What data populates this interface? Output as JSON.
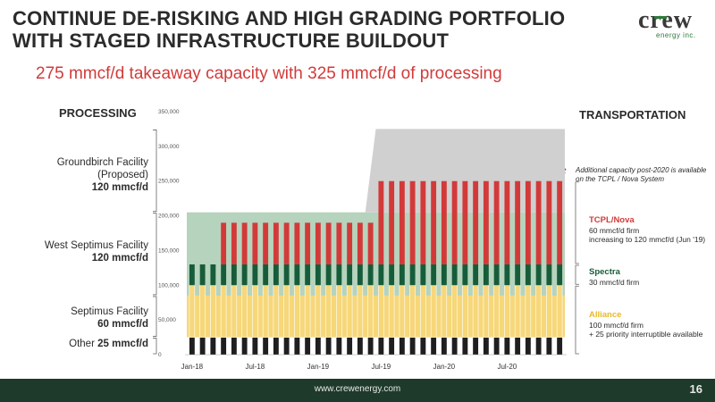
{
  "title": "CONTINUE DE-RISKING AND HIGH GRADING PORTFOLIO WITH STAGED INFRASTRUCTURE BUILDOUT",
  "subtitle": "275 mmcf/d takeaway capacity with 325 mmcf/d of processing",
  "logo": {
    "name": "crew",
    "sub": "energy inc."
  },
  "processing_header": "PROCESSING",
  "transportation_header": "TRANSPORTATION",
  "processing_labels": [
    {
      "name": "Groundbirch Facility",
      "sub": "(Proposed)",
      "value": "120 mmcf/d"
    },
    {
      "name": "West Septimus Facility",
      "value": "120 mmcf/d"
    },
    {
      "name": "Septimus Facility",
      "value": "60 mmcf/d"
    },
    {
      "name": "Other",
      "value": "25 mmcf/d"
    }
  ],
  "transport_note": "Additional capacity post-2020 is available on the TCPL / Nova System",
  "transport_labels": [
    {
      "name": "TCPL/Nova",
      "line1": "60 mmcf/d firm",
      "line2": "increasing to 120 mmcf/d (Jun '19)"
    },
    {
      "name": "Spectra",
      "line1": "30 mmcf/d firm"
    },
    {
      "name": "Alliance",
      "line1": "100 mmcf/d firm",
      "line2": "+ 25 priority interruptible available"
    }
  ],
  "footer": {
    "url": "www.crewenergy.com",
    "page": "16"
  },
  "colors": {
    "other": "#1f1f1f",
    "septimus": "#f6d77a",
    "west_septimus": "#b6d3bd",
    "groundbirch": "#d0d0d0",
    "tcpl": "#d23a3a",
    "spectra": "#175c3a",
    "alliance": "#f6d77a"
  },
  "chart_data": {
    "type": "area",
    "ylim": [
      0,
      350000
    ],
    "yticks": [
      "0",
      "50,000",
      "100,000",
      "150,000",
      "200,000",
      "250,000",
      "300,000",
      "350,000"
    ],
    "xticks": [
      "Jan-18",
      "Jul-18",
      "Jan-19",
      "Jul-19",
      "Jan-20",
      "Jul-20"
    ],
    "months": 36,
    "processing_series": [
      {
        "name": "Other",
        "values": [
          25000
        ]
      },
      {
        "name": "Septimus Facility",
        "values": [
          60000
        ]
      },
      {
        "name": "West Septimus Facility",
        "values": [
          120000
        ]
      },
      {
        "name": "Groundbirch Facility (Proposed)",
        "values": [
          120000
        ],
        "start_month": 18
      }
    ],
    "transport_series": [
      {
        "name": "Alliance firm",
        "values": [
          100000
        ]
      },
      {
        "name": "Spectra firm",
        "values": [
          30000
        ]
      },
      {
        "name": "TCPL/Nova firm",
        "values_before_jun19": 60000,
        "values_after_jun19": 120000,
        "start_month": 3
      }
    ]
  }
}
